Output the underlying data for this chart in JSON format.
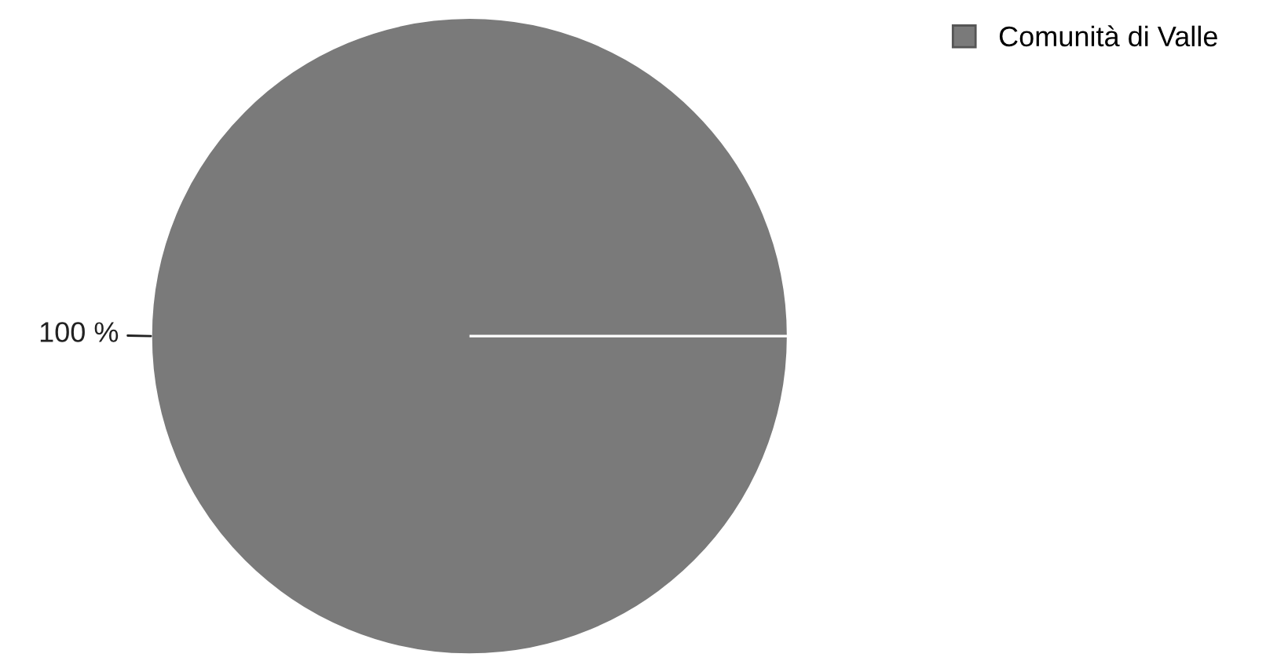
{
  "chart_data": {
    "type": "pie",
    "categories": [
      "Comunità di Valle"
    ],
    "values": [
      100
    ],
    "colors": [
      "#7a7a7a"
    ],
    "value_labels": [
      "100 %"
    ],
    "legend": "top right"
  }
}
